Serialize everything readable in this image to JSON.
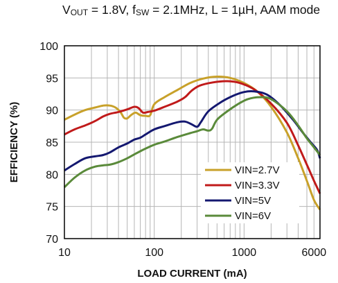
{
  "chart_data": {
    "type": "line",
    "title_parts": {
      "v": "V",
      "v_sub": "OUT",
      "mid": " = 1.8V, f",
      "f_sub": "SW",
      "rest": " = 2.1MHz, L = 1µH, AAM mode"
    },
    "xlabel": "LOAD CURRENT  (mA)",
    "ylabel": "EFFICIENCY  (%)",
    "x_scale": "log",
    "xlim": [
      10,
      7000
    ],
    "ylim": [
      70,
      100
    ],
    "x_ticks": [
      10,
      100,
      1000,
      6000
    ],
    "x_tick_labels": [
      "10",
      "100",
      "1000",
      "6000"
    ],
    "y_ticks": [
      70,
      75,
      80,
      85,
      90,
      95,
      100
    ],
    "y_tick_labels": [
      "70",
      "75",
      "80",
      "85",
      "90",
      "95",
      "100"
    ],
    "grid": true,
    "legend_position": "bottom-right",
    "series": [
      {
        "name": "VIN=2.7V",
        "color": "#c8a12a",
        "points": [
          [
            10,
            88.5
          ],
          [
            13,
            89.3
          ],
          [
            17,
            90.0
          ],
          [
            22,
            90.4
          ],
          [
            27,
            90.7
          ],
          [
            32,
            90.7
          ],
          [
            37,
            90.4
          ],
          [
            42,
            89.7
          ],
          [
            46,
            88.8
          ],
          [
            50,
            88.7
          ],
          [
            55,
            89.2
          ],
          [
            62,
            89.6
          ],
          [
            70,
            89.2
          ],
          [
            80,
            89.1
          ],
          [
            90,
            89.2
          ],
          [
            100,
            90.9
          ],
          [
            130,
            92.0
          ],
          [
            180,
            93.1
          ],
          [
            250,
            94.2
          ],
          [
            350,
            94.9
          ],
          [
            500,
            95.2
          ],
          [
            700,
            95.0
          ],
          [
            1000,
            94.2
          ],
          [
            1400,
            92.9
          ],
          [
            2000,
            90.5
          ],
          [
            3000,
            86.5
          ],
          [
            4000,
            82.5
          ],
          [
            5000,
            79.0
          ],
          [
            6000,
            76.0
          ],
          [
            7000,
            74.5
          ]
        ]
      },
      {
        "name": "VIN=3.3V",
        "color": "#c01a1a",
        "points": [
          [
            10,
            86.2
          ],
          [
            13,
            87.0
          ],
          [
            17,
            87.6
          ],
          [
            22,
            88.3
          ],
          [
            27,
            89.0
          ],
          [
            32,
            89.4
          ],
          [
            40,
            89.7
          ],
          [
            50,
            90.1
          ],
          [
            60,
            90.5
          ],
          [
            67,
            90.3
          ],
          [
            75,
            89.6
          ],
          [
            85,
            89.7
          ],
          [
            100,
            89.9
          ],
          [
            130,
            90.5
          ],
          [
            180,
            91.3
          ],
          [
            220,
            92.0
          ],
          [
            260,
            93.0
          ],
          [
            320,
            93.8
          ],
          [
            450,
            94.3
          ],
          [
            650,
            94.5
          ],
          [
            900,
            94.2
          ],
          [
            1300,
            93.2
          ],
          [
            2000,
            91.0
          ],
          [
            3000,
            88.0
          ],
          [
            4000,
            84.5
          ],
          [
            5000,
            81.5
          ],
          [
            6000,
            79.0
          ],
          [
            7000,
            77.0
          ]
        ]
      },
      {
        "name": "VIN=5V",
        "color": "#141870",
        "points": [
          [
            10,
            80.6
          ],
          [
            13,
            81.6
          ],
          [
            17,
            82.5
          ],
          [
            22,
            82.8
          ],
          [
            27,
            83.0
          ],
          [
            32,
            83.4
          ],
          [
            40,
            84.2
          ],
          [
            50,
            84.8
          ],
          [
            60,
            85.4
          ],
          [
            70,
            85.7
          ],
          [
            80,
            86.2
          ],
          [
            100,
            87.0
          ],
          [
            130,
            87.5
          ],
          [
            180,
            88.1
          ],
          [
            220,
            88.2
          ],
          [
            260,
            87.8
          ],
          [
            300,
            87.4
          ],
          [
            330,
            88.1
          ],
          [
            400,
            89.8
          ],
          [
            550,
            91.2
          ],
          [
            750,
            92.2
          ],
          [
            1000,
            92.8
          ],
          [
            1300,
            92.9
          ],
          [
            1800,
            92.4
          ],
          [
            2500,
            90.8
          ],
          [
            3500,
            88.5
          ],
          [
            4500,
            86.5
          ],
          [
            5500,
            85.0
          ],
          [
            6500,
            83.8
          ],
          [
            7000,
            82.5
          ]
        ]
      },
      {
        "name": "VIN=6V",
        "color": "#5a8a3a",
        "points": [
          [
            10,
            78.0
          ],
          [
            13,
            79.5
          ],
          [
            17,
            80.6
          ],
          [
            22,
            81.2
          ],
          [
            27,
            81.4
          ],
          [
            32,
            81.5
          ],
          [
            40,
            81.9
          ],
          [
            50,
            82.5
          ],
          [
            60,
            83.1
          ],
          [
            70,
            83.6
          ],
          [
            80,
            84.0
          ],
          [
            100,
            84.6
          ],
          [
            130,
            85.1
          ],
          [
            180,
            85.8
          ],
          [
            250,
            86.4
          ],
          [
            300,
            86.7
          ],
          [
            350,
            87.0
          ],
          [
            400,
            86.8
          ],
          [
            440,
            87.1
          ],
          [
            500,
            88.5
          ],
          [
            650,
            89.8
          ],
          [
            850,
            90.9
          ],
          [
            1100,
            91.7
          ],
          [
            1500,
            92.0
          ],
          [
            2000,
            91.7
          ],
          [
            3000,
            89.8
          ],
          [
            4000,
            87.6
          ],
          [
            5000,
            85.6
          ],
          [
            6000,
            84.2
          ],
          [
            7000,
            83.0
          ]
        ]
      }
    ]
  }
}
